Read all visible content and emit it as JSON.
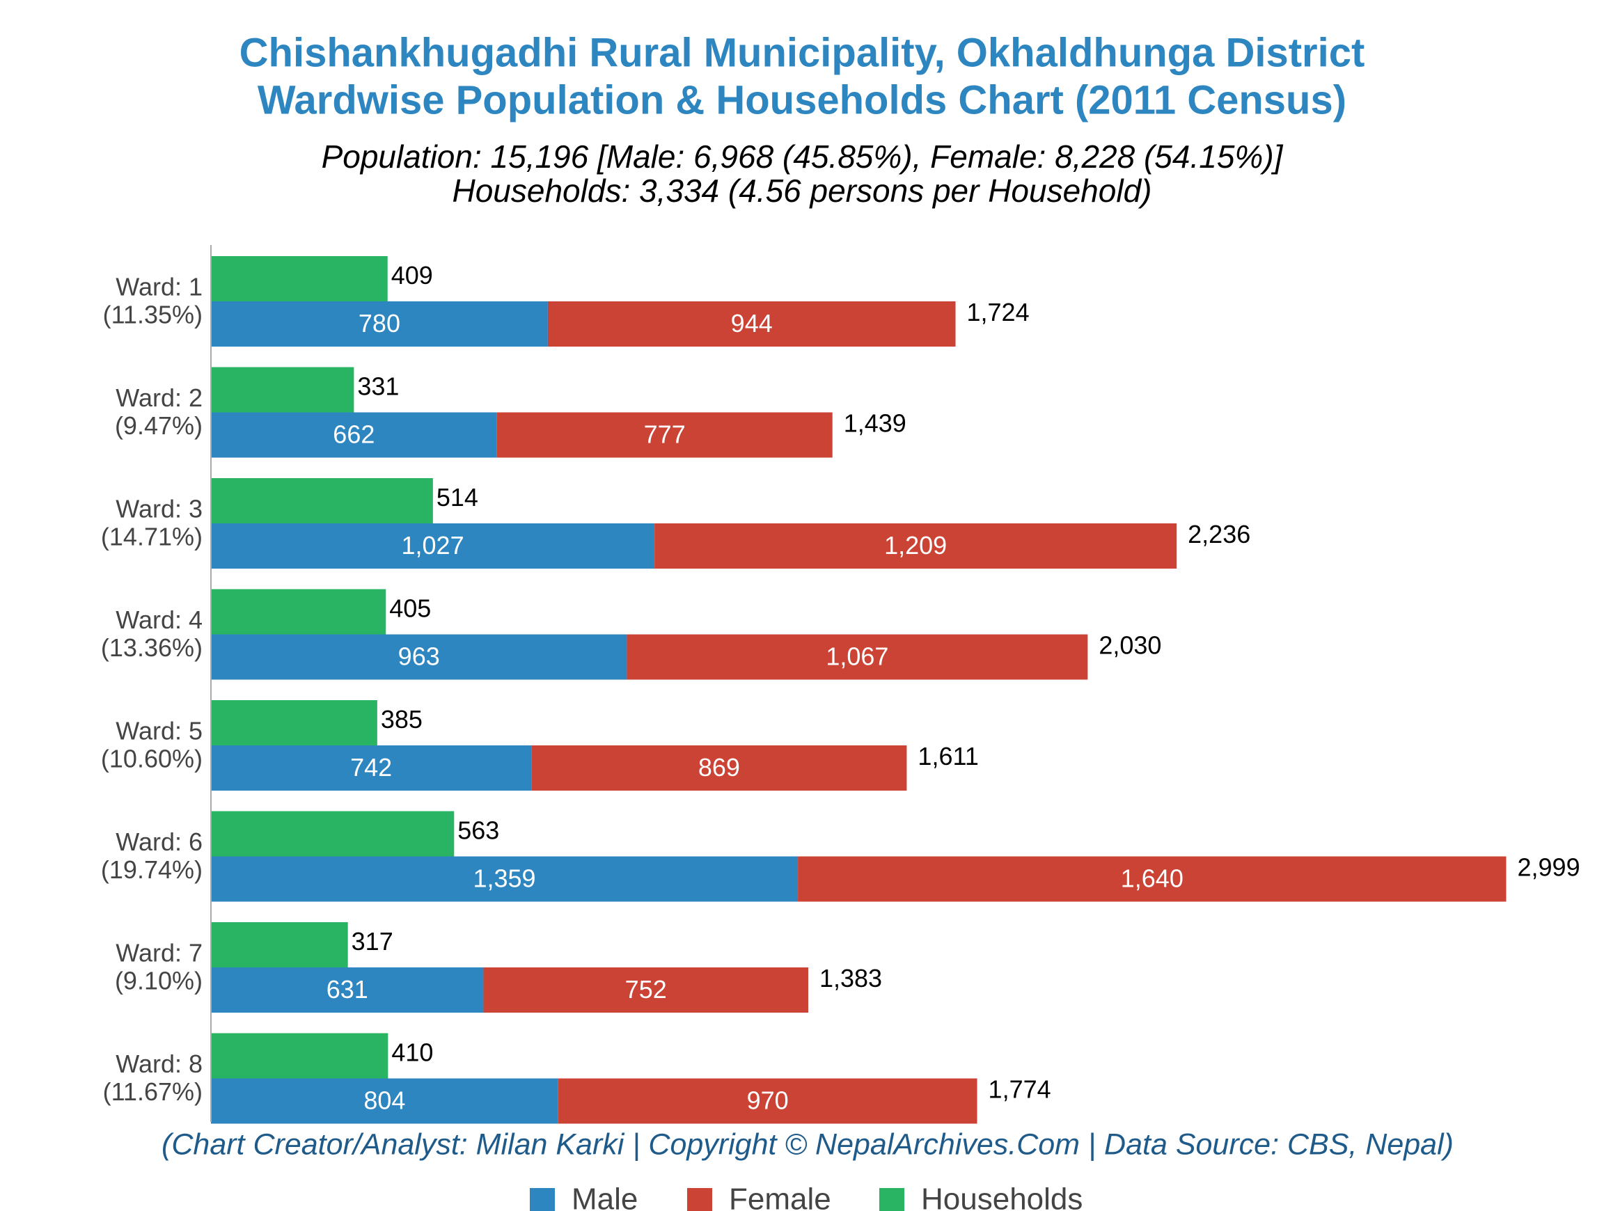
{
  "chart_data": {
    "type": "bar",
    "title": "Chishankhugadhi Rural Municipality, Okhaldhunga District",
    "title_line2": "Wardwise Population & Households Chart (2011 Census)",
    "subtitle": "Population: 15,196 [Male: 6,968 (45.85%), Female: 8,228 (54.15%)]",
    "subtitle_line2": "Households: 3,334 (4.56 persons per Household)",
    "footer": "(Chart Creator/Analyst: Milan Karki | Copyright © NepalArchives.Com | Data Source: CBS, Nepal)",
    "categories": [
      "Ward: 1",
      "Ward: 2",
      "Ward: 3",
      "Ward: 4",
      "Ward: 5",
      "Ward: 6",
      "Ward: 7",
      "Ward: 8"
    ],
    "category_shares": [
      "(11.35%)",
      "(9.47%)",
      "(14.71%)",
      "(13.36%)",
      "(10.60%)",
      "(19.74%)",
      "(9.10%)",
      "(11.67%)"
    ],
    "series": [
      {
        "name": "Male",
        "color": "#2e86c1",
        "values": [
          780,
          662,
          1027,
          963,
          742,
          1359,
          631,
          804
        ],
        "value_labels": [
          "780",
          "662",
          "1,027",
          "963",
          "742",
          "1,359",
          "631",
          "804"
        ]
      },
      {
        "name": "Female",
        "color": "#cb4335",
        "values": [
          944,
          777,
          1209,
          1067,
          869,
          1640,
          752,
          970
        ],
        "value_labels": [
          "944",
          "777",
          "1,209",
          "1,067",
          "869",
          "1,640",
          "752",
          "970"
        ]
      },
      {
        "name": "Households",
        "color": "#28b463",
        "values": [
          409,
          331,
          514,
          405,
          385,
          563,
          317,
          410
        ]
      }
    ],
    "totals": [
      1724,
      1439,
      2236,
      2030,
      1611,
      2999,
      1383,
      1774
    ],
    "total_labels": [
      "1,724",
      "1,439",
      "2,236",
      "2,030",
      "1,611",
      "2,999",
      "1,383",
      "1,774"
    ],
    "xlim": [
      0,
      3190
    ]
  }
}
